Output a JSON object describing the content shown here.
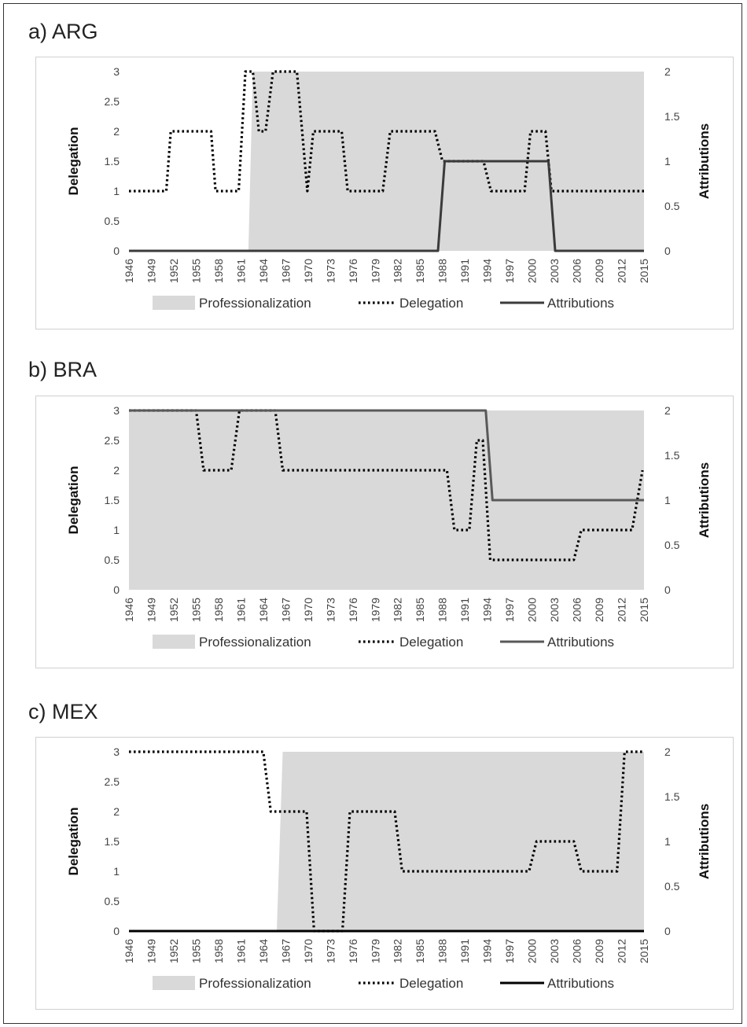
{
  "figure": {
    "years": [
      "1946",
      "1949",
      "1952",
      "1955",
      "1958",
      "1961",
      "1964",
      "1967",
      "1970",
      "1973",
      "1976",
      "1979",
      "1982",
      "1985",
      "1988",
      "1991",
      "1994",
      "1997",
      "2000",
      "2003",
      "2006",
      "2009",
      "2012",
      "2015"
    ],
    "left_axis_label": "Delegation",
    "right_axis_label": "Attributions",
    "left_ticks": [
      "0",
      "0.5",
      "1",
      "1.5",
      "2",
      "2.5",
      "3"
    ],
    "right_ticks": [
      "0",
      "0.5",
      "1",
      "1.5",
      "2"
    ],
    "legend": {
      "area": "Professionalization",
      "dotted": "Delegation",
      "solid": "Attributions"
    },
    "colors": {
      "area": "#d9d9d9",
      "delegation": "#000000",
      "attributions_arg": "#3b3b3b",
      "attributions_bra": "#595959",
      "attributions_mex": "#000000"
    }
  },
  "chart_data": [
    {
      "type": "line",
      "title": "a) ARG",
      "x_range": [
        1946,
        2015
      ],
      "ylim_left": [
        0,
        3
      ],
      "ylim_right": [
        0,
        2
      ],
      "series": [
        {
          "name": "Professionalization",
          "kind": "area",
          "axis": "left",
          "points": [
            [
              1946,
              0
            ],
            [
              1962,
              0
            ],
            [
              1962.6,
              3
            ],
            [
              2015,
              3
            ]
          ]
        },
        {
          "name": "Delegation",
          "kind": "dotted",
          "axis": "left",
          "points": [
            [
              1946,
              1
            ],
            [
              1951,
              1
            ],
            [
              1951.6,
              2
            ],
            [
              1957,
              2
            ],
            [
              1957.6,
              1
            ],
            [
              1960.7,
              1
            ],
            [
              1961.6,
              3
            ],
            [
              1962.6,
              3
            ],
            [
              1963.4,
              2
            ],
            [
              1964.3,
              2
            ],
            [
              1965.3,
              3
            ],
            [
              1968.5,
              3
            ],
            [
              1969.9,
              1
            ],
            [
              1970.7,
              2
            ],
            [
              1974.5,
              2
            ],
            [
              1975.3,
              1
            ],
            [
              1980,
              1
            ],
            [
              1981,
              2
            ],
            [
              1987,
              2
            ],
            [
              1988,
              1.5
            ],
            [
              1993.5,
              1.5
            ],
            [
              1994.5,
              1
            ],
            [
              1999,
              1
            ],
            [
              1999.8,
              2
            ],
            [
              2001.8,
              2
            ],
            [
              2002.6,
              1
            ],
            [
              2015,
              1
            ]
          ]
        },
        {
          "name": "Attributions",
          "kind": "solid",
          "axis": "right",
          "points": [
            [
              1946,
              0
            ],
            [
              1987.4,
              0
            ],
            [
              1988.3,
              1
            ],
            [
              2002.2,
              1
            ],
            [
              2003.1,
              0
            ],
            [
              2015,
              0
            ]
          ]
        }
      ]
    },
    {
      "type": "line",
      "title": "b) BRA",
      "x_range": [
        1946,
        2015
      ],
      "ylim_left": [
        0,
        3
      ],
      "ylim_right": [
        0,
        2
      ],
      "series": [
        {
          "name": "Professionalization",
          "kind": "area",
          "axis": "left",
          "points": [
            [
              1946,
              3
            ],
            [
              2015,
              3
            ]
          ]
        },
        {
          "name": "Delegation",
          "kind": "dotted",
          "axis": "left",
          "points": [
            [
              1946,
              3
            ],
            [
              1955,
              3
            ],
            [
              1956,
              2
            ],
            [
              1959.7,
              2
            ],
            [
              1960.8,
              3
            ],
            [
              1965.6,
              3
            ],
            [
              1966.6,
              2
            ],
            [
              1988.6,
              2
            ],
            [
              1989.6,
              1
            ],
            [
              1991.6,
              1
            ],
            [
              1992.6,
              2.5
            ],
            [
              1993.4,
              2.5
            ],
            [
              1994.4,
              0.5
            ],
            [
              2005.6,
              0.5
            ],
            [
              2006.6,
              1
            ],
            [
              2013.4,
              1
            ],
            [
              2014.8,
              2
            ]
          ]
        },
        {
          "name": "Attributions",
          "kind": "solid",
          "axis": "right",
          "points": [
            [
              1946,
              2
            ],
            [
              1993.8,
              2
            ],
            [
              1994.7,
              1
            ],
            [
              2015,
              1
            ]
          ]
        }
      ]
    },
    {
      "type": "line",
      "title": "c) MEX",
      "x_range": [
        1946,
        2015
      ],
      "ylim_left": [
        0,
        3
      ],
      "ylim_right": [
        0,
        2
      ],
      "series": [
        {
          "name": "Professionalization",
          "kind": "area",
          "axis": "left",
          "points": [
            [
              1946,
              0
            ],
            [
              1965.8,
              0
            ],
            [
              1966.6,
              3
            ],
            [
              2015,
              3
            ]
          ]
        },
        {
          "name": "Delegation",
          "kind": "dotted",
          "axis": "left",
          "points": [
            [
              1946,
              3
            ],
            [
              1964,
              3
            ],
            [
              1965,
              2
            ],
            [
              1969.8,
              2
            ],
            [
              1970.8,
              0
            ],
            [
              1974.6,
              0
            ],
            [
              1975.6,
              2
            ],
            [
              1981.6,
              2
            ],
            [
              1982.6,
              1
            ],
            [
              1999.6,
              1
            ],
            [
              2000.6,
              1.5
            ],
            [
              2005.6,
              1.5
            ],
            [
              2006.6,
              1
            ],
            [
              2011.4,
              1
            ],
            [
              2012.4,
              3
            ],
            [
              2015,
              3
            ]
          ]
        },
        {
          "name": "Attributions",
          "kind": "solid",
          "axis": "right",
          "points": [
            [
              1946,
              0
            ],
            [
              2015,
              0
            ]
          ]
        }
      ]
    }
  ]
}
